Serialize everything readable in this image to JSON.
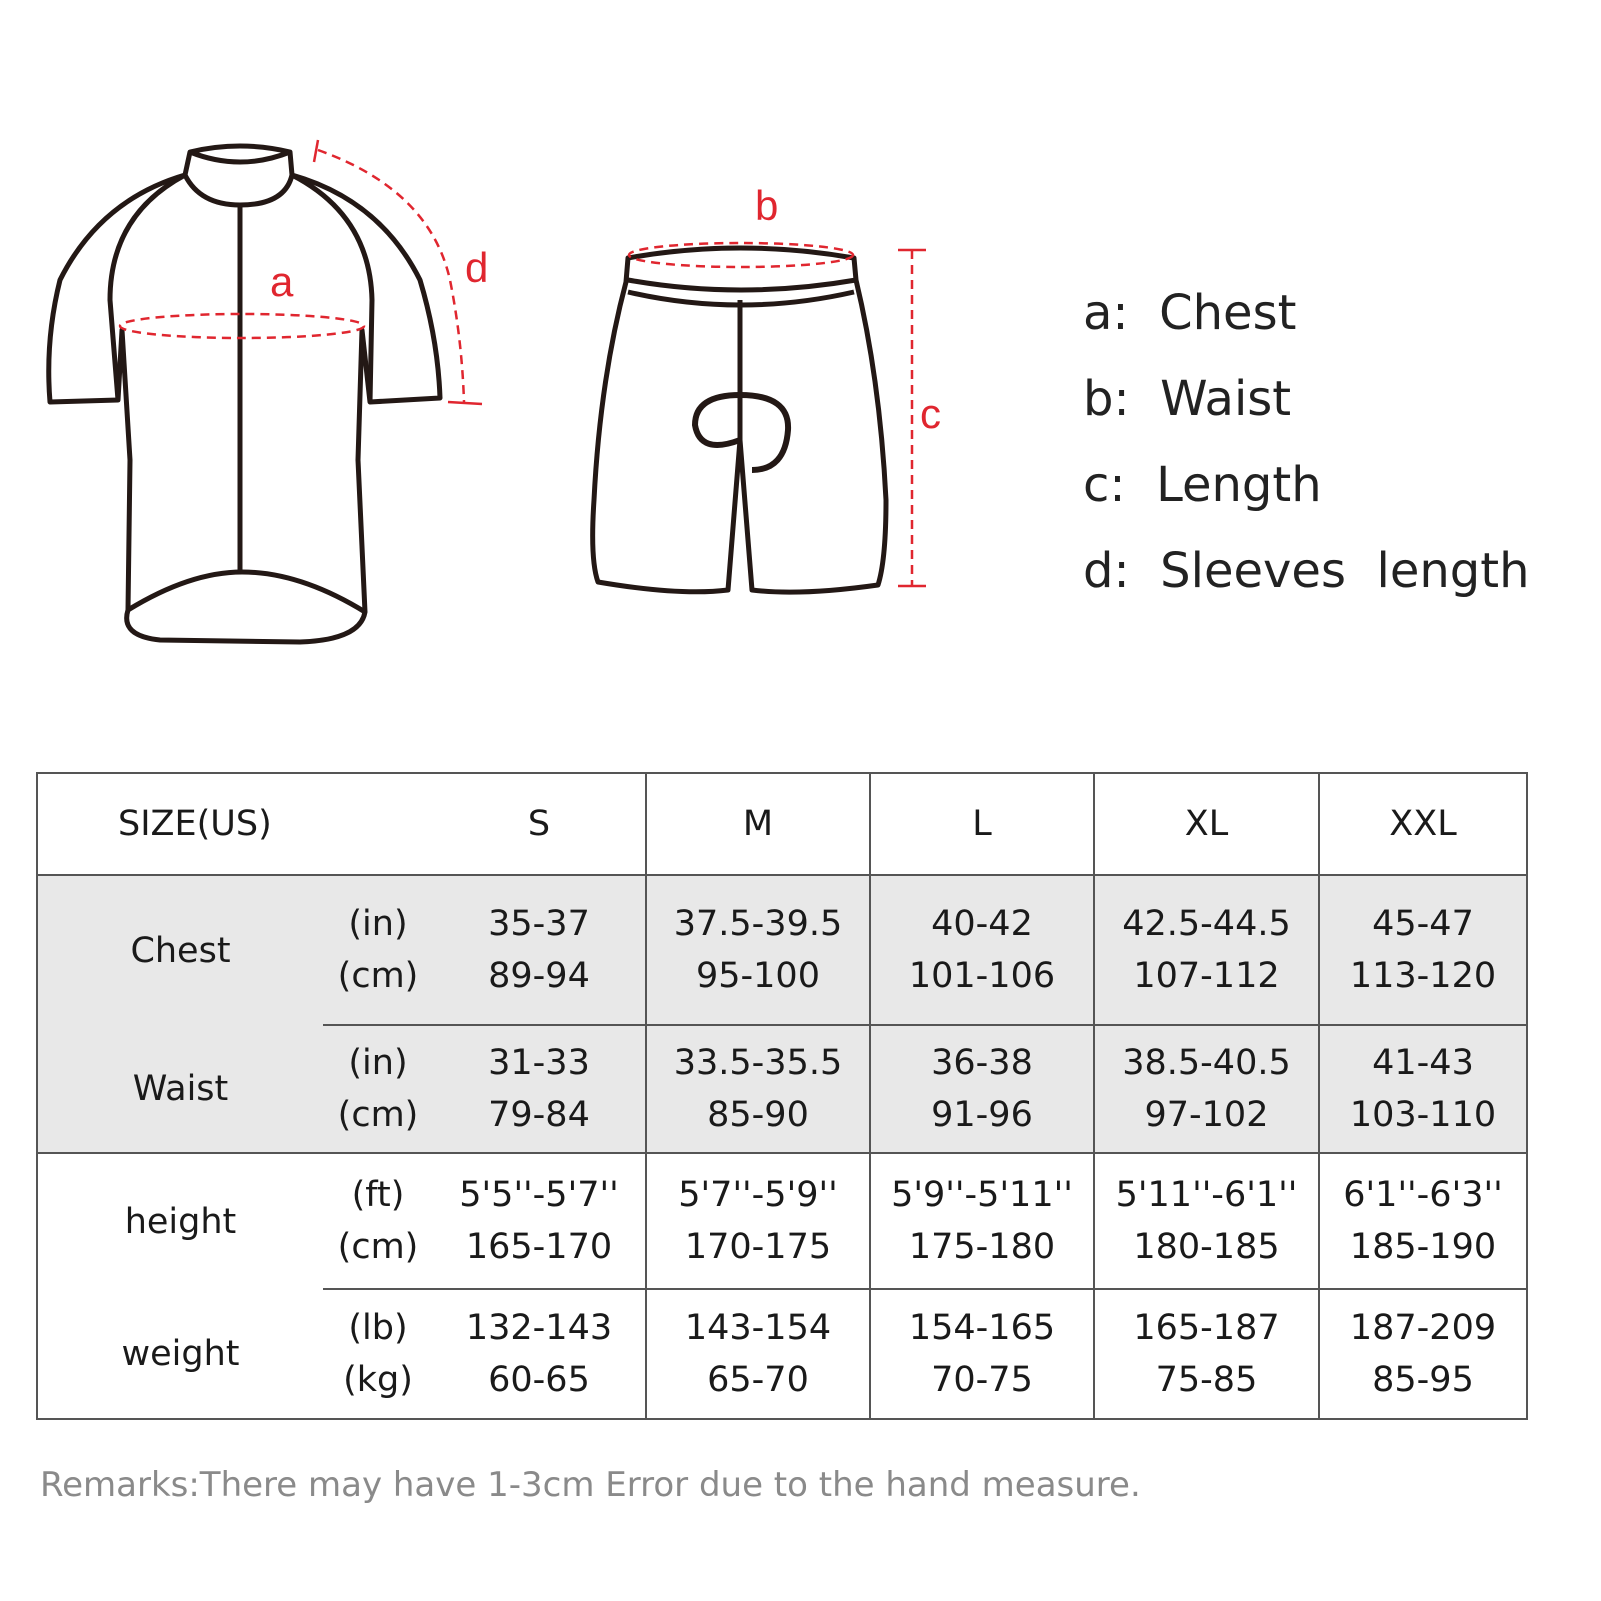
{
  "diagram": {
    "labels": {
      "a": "a",
      "b": "b",
      "c": "c",
      "d": "d"
    },
    "colors": {
      "outline": "#231815",
      "measure": "#e0262f"
    }
  },
  "legend": [
    {
      "text": "a:  Chest"
    },
    {
      "text": "b:  Waist"
    },
    {
      "text": "c:  Length"
    },
    {
      "text": "d:  Sleeves  length"
    }
  ],
  "table": {
    "header": {
      "label": "SIZE(US)",
      "sizes": [
        "S",
        "M",
        "L",
        "XL",
        "XXL"
      ]
    },
    "rows": [
      {
        "label": "Chest",
        "units": [
          "(in)",
          "(cm)"
        ],
        "values": [
          [
            "35-37",
            "89-94"
          ],
          [
            "37.5-39.5",
            "95-100"
          ],
          [
            "40-42",
            "101-106"
          ],
          [
            "42.5-44.5",
            "107-112"
          ],
          [
            "45-47",
            "113-120"
          ]
        ]
      },
      {
        "label": "Waist",
        "units": [
          "(in)",
          "(cm)"
        ],
        "values": [
          [
            "31-33",
            "79-84"
          ],
          [
            "33.5-35.5",
            "85-90"
          ],
          [
            "36-38",
            "91-96"
          ],
          [
            "38.5-40.5",
            "97-102"
          ],
          [
            "41-43",
            "103-110"
          ]
        ]
      },
      {
        "label": "height",
        "units": [
          "(ft)",
          "(cm)"
        ],
        "values": [
          [
            "5'5''-5'7''",
            "165-170"
          ],
          [
            "5'7''-5'9''",
            "170-175"
          ],
          [
            "5'9''-5'11''",
            "175-180"
          ],
          [
            "5'11''-6'1''",
            "180-185"
          ],
          [
            "6'1''-6'3''",
            "185-190"
          ]
        ]
      },
      {
        "label": "weight",
        "units": [
          "(lb)",
          "(kg)"
        ],
        "values": [
          [
            "132-143",
            "60-65"
          ],
          [
            "143-154",
            "65-70"
          ],
          [
            "154-165",
            "70-75"
          ],
          [
            "165-187",
            "75-85"
          ],
          [
            "187-209",
            "85-95"
          ]
        ]
      }
    ]
  },
  "remark": "Remarks:There may have 1-3cm Error due to the hand measure."
}
